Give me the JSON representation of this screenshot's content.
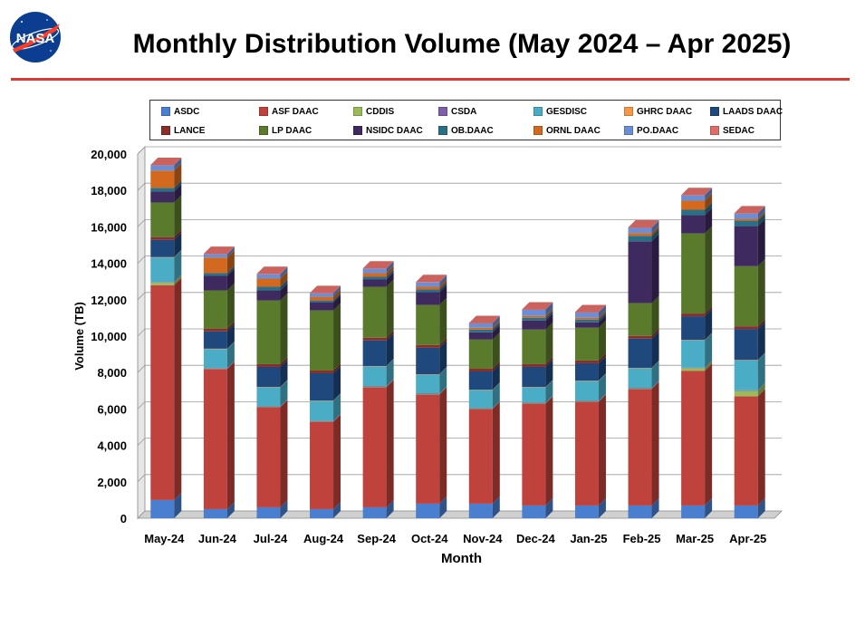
{
  "header": {
    "title": "Monthly Distribution Volume (May 2024 – Apr 2025)",
    "logo_text": "NASA"
  },
  "chart_data": {
    "type": "bar",
    "stacked": true,
    "xlabel": "Month",
    "ylabel": "Volume (TB)",
    "ylim": [
      0,
      20000
    ],
    "yticks": [
      0,
      2000,
      4000,
      6000,
      8000,
      10000,
      12000,
      14000,
      16000,
      18000,
      20000
    ],
    "ytick_labels": [
      "0",
      "2,000",
      "4,000",
      "6,000",
      "8,000",
      "10,000",
      "12,000",
      "14,000",
      "16,000",
      "18,000",
      "20,000"
    ],
    "grid": true,
    "legend_position": "top",
    "categories": [
      "May-24",
      "Jun-24",
      "Jul-24",
      "Aug-24",
      "Sep-24",
      "Oct-24",
      "Nov-24",
      "Dec-24",
      "Jan-25",
      "Feb-25",
      "Mar-25",
      "Apr-25"
    ],
    "series": [
      {
        "name": "ASDC",
        "color": "#4a7fd0",
        "values": [
          1000,
          500,
          600,
          500,
          600,
          800,
          800,
          700,
          700,
          700,
          700,
          700
        ]
      },
      {
        "name": "ASF DAAC",
        "color": "#c0423c",
        "values": [
          11800,
          7700,
          5500,
          4800,
          6600,
          6000,
          5200,
          5600,
          5700,
          6400,
          7400,
          6000
        ]
      },
      {
        "name": "CDDIS",
        "color": "#9bbb59",
        "values": [
          150,
          20,
          20,
          20,
          20,
          20,
          20,
          20,
          20,
          20,
          150,
          300
        ]
      },
      {
        "name": "CSDA",
        "color": "#7f5fa8",
        "values": [
          20,
          20,
          20,
          20,
          20,
          20,
          20,
          20,
          20,
          20,
          20,
          20
        ]
      },
      {
        "name": "GESDISC",
        "color": "#4bacc6",
        "values": [
          1350,
          1050,
          1050,
          1100,
          1100,
          1050,
          1000,
          850,
          1100,
          1100,
          1500,
          1650
        ]
      },
      {
        "name": "GHRC DAAC",
        "color": "#f79646",
        "values": [
          20,
          20,
          20,
          20,
          20,
          20,
          20,
          20,
          20,
          20,
          20,
          20
        ]
      },
      {
        "name": "LAADS DAAC",
        "color": "#1f497d",
        "values": [
          950,
          950,
          1100,
          1500,
          1400,
          1450,
          1000,
          1100,
          950,
          1600,
          1300,
          1700
        ]
      },
      {
        "name": "LANCE",
        "color": "#8b2e2a",
        "values": [
          150,
          150,
          150,
          150,
          150,
          150,
          150,
          150,
          150,
          150,
          150,
          150
        ]
      },
      {
        "name": "LP DAAC",
        "color": "#5a7b2c",
        "values": [
          1900,
          2100,
          3500,
          3300,
          2800,
          2200,
          1600,
          1900,
          1800,
          1800,
          4400,
          3300
        ]
      },
      {
        "name": "NSIDC DAAC",
        "color": "#3e2a5e",
        "values": [
          600,
          800,
          550,
          450,
          400,
          700,
          400,
          500,
          300,
          3400,
          1000,
          2200
        ]
      },
      {
        "name": "OB.DAAC",
        "color": "#2b6f86",
        "values": [
          200,
          150,
          200,
          100,
          150,
          150,
          150,
          150,
          150,
          300,
          300,
          300
        ]
      },
      {
        "name": "ORNL DAAC",
        "color": "#d2691e",
        "values": [
          950,
          850,
          450,
          200,
          200,
          150,
          100,
          100,
          100,
          150,
          500,
          100
        ]
      },
      {
        "name": "PO.DAAC",
        "color": "#6b8fd6",
        "values": [
          300,
          200,
          250,
          200,
          250,
          250,
          250,
          350,
          300,
          300,
          300,
          300
        ]
      },
      {
        "name": "SEDAC",
        "color": "#e06e68",
        "values": [
          10,
          10,
          10,
          10,
          10,
          10,
          10,
          10,
          10,
          10,
          10,
          10
        ]
      }
    ]
  }
}
